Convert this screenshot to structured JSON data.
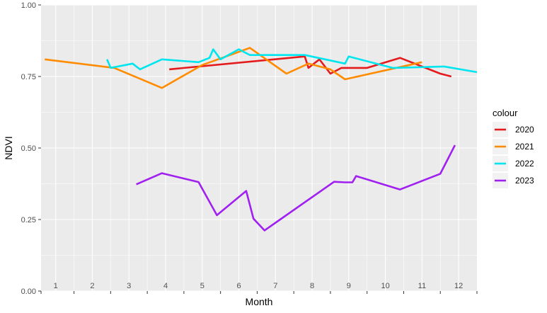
{
  "chart_data": {
    "type": "line",
    "xlabel": "Month",
    "ylabel": "NDVI",
    "xlim": [
      0.6,
      12.5
    ],
    "ylim": [
      0,
      1
    ],
    "x_ticks": [
      1,
      2,
      3,
      4,
      5,
      6,
      7,
      8,
      9,
      10,
      11,
      12
    ],
    "x_tick_labels": [
      "1",
      "2",
      "3",
      "4",
      "5",
      "6",
      "7",
      "8",
      "9",
      "10",
      "11",
      "12"
    ],
    "y_ticks": [
      0,
      0.25,
      0.5,
      0.75,
      1
    ],
    "y_tick_labels": [
      "0.00",
      "0.25",
      "0.50",
      "0.75",
      "1.00"
    ],
    "grid": true,
    "legend": {
      "title": "colour",
      "position": "right"
    },
    "series": [
      {
        "name": "2020",
        "color": "#e41a1c",
        "points": [
          [
            4.1,
            0.775
          ],
          [
            7.8,
            0.82
          ],
          [
            7.9,
            0.78
          ],
          [
            8.2,
            0.81
          ],
          [
            8.5,
            0.76
          ],
          [
            8.8,
            0.78
          ],
          [
            9.5,
            0.78
          ],
          [
            10.4,
            0.815
          ],
          [
            11.5,
            0.76
          ],
          [
            11.8,
            0.75
          ]
        ]
      },
      {
        "name": "2021",
        "color": "#ff8c00",
        "points": [
          [
            0.7,
            0.81
          ],
          [
            2.6,
            0.78
          ],
          [
            3.9,
            0.71
          ],
          [
            5.0,
            0.79
          ],
          [
            6.3,
            0.85
          ],
          [
            7.3,
            0.76
          ],
          [
            7.9,
            0.795
          ],
          [
            8.5,
            0.775
          ],
          [
            8.9,
            0.74
          ],
          [
            11.0,
            0.8
          ]
        ]
      },
      {
        "name": "2022",
        "color": "#00e5ee",
        "points": [
          [
            2.4,
            0.81
          ],
          [
            2.5,
            0.78
          ],
          [
            3.1,
            0.795
          ],
          [
            3.3,
            0.775
          ],
          [
            3.9,
            0.81
          ],
          [
            4.9,
            0.8
          ],
          [
            5.2,
            0.815
          ],
          [
            5.3,
            0.845
          ],
          [
            5.5,
            0.81
          ],
          [
            6.0,
            0.845
          ],
          [
            6.3,
            0.825
          ],
          [
            7.8,
            0.825
          ],
          [
            8.9,
            0.795
          ],
          [
            9.0,
            0.82
          ],
          [
            10.2,
            0.78
          ],
          [
            11.6,
            0.785
          ],
          [
            12.5,
            0.765
          ]
        ]
      },
      {
        "name": "2023",
        "color": "#a020f0",
        "points": [
          [
            3.2,
            0.373
          ],
          [
            3.9,
            0.412
          ],
          [
            4.9,
            0.381
          ],
          [
            5.4,
            0.265
          ],
          [
            6.2,
            0.35
          ],
          [
            6.4,
            0.253
          ],
          [
            6.7,
            0.212
          ],
          [
            8.6,
            0.382
          ],
          [
            8.9,
            0.38
          ],
          [
            9.1,
            0.38
          ],
          [
            9.2,
            0.402
          ],
          [
            10.4,
            0.355
          ],
          [
            11.5,
            0.41
          ],
          [
            11.9,
            0.51
          ]
        ]
      }
    ]
  }
}
